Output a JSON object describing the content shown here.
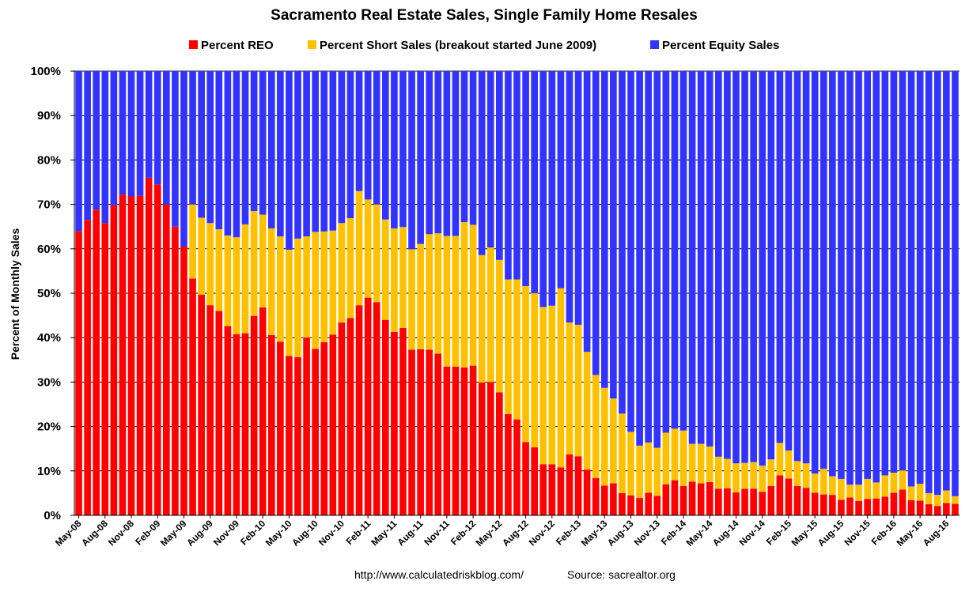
{
  "chart_data": {
    "type": "bar",
    "stacked": true,
    "title": "Sacramento Real Estate Sales, Single Family Home Resales",
    "ylabel": "Percent of Monthly Sales",
    "ylim": [
      0,
      100
    ],
    "y_ticks": [
      "0%",
      "10%",
      "20%",
      "30%",
      "40%",
      "50%",
      "60%",
      "70%",
      "80%",
      "90%",
      "100%"
    ],
    "x_tick_labels": [
      "May-08",
      "Aug-08",
      "Nov-08",
      "Feb-09",
      "May-09",
      "Aug-09",
      "Nov-09",
      "Feb-10",
      "May-10",
      "Aug-10",
      "Nov-10",
      "Feb-11",
      "May-11",
      "Aug-11",
      "Nov-11",
      "Feb-12",
      "May-12",
      "Aug-12",
      "Nov-12",
      "Feb-13",
      "May-13",
      "Aug-13",
      "Nov-13",
      "Feb-14",
      "May-14",
      "Aug-14",
      "Nov-14",
      "Feb-15",
      "May-15",
      "Aug-15",
      "Nov-15",
      "Feb-16",
      "May-16",
      "Aug-16"
    ],
    "legend_position": "top",
    "grid": true,
    "categories": [
      "May-08",
      "Jun-08",
      "Jul-08",
      "Aug-08",
      "Sep-08",
      "Oct-08",
      "Nov-08",
      "Dec-08",
      "Jan-09",
      "Feb-09",
      "Mar-09",
      "Apr-09",
      "May-09",
      "Jun-09",
      "Jul-09",
      "Aug-09",
      "Sep-09",
      "Oct-09",
      "Nov-09",
      "Dec-09",
      "Jan-10",
      "Feb-10",
      "Mar-10",
      "Apr-10",
      "May-10",
      "Jun-10",
      "Jul-10",
      "Aug-10",
      "Sep-10",
      "Oct-10",
      "Nov-10",
      "Dec-10",
      "Jan-11",
      "Feb-11",
      "Mar-11",
      "Apr-11",
      "May-11",
      "Jun-11",
      "Jul-11",
      "Aug-11",
      "Sep-11",
      "Oct-11",
      "Nov-11",
      "Dec-11",
      "Jan-12",
      "Feb-12",
      "Mar-12",
      "Apr-12",
      "May-12",
      "Jun-12",
      "Jul-12",
      "Aug-12",
      "Sep-12",
      "Oct-12",
      "Nov-12",
      "Dec-12",
      "Jan-13",
      "Feb-13",
      "Mar-13",
      "Apr-13",
      "May-13",
      "Jun-13",
      "Jul-13",
      "Aug-13",
      "Sep-13",
      "Oct-13",
      "Nov-13",
      "Dec-13",
      "Jan-14",
      "Feb-14",
      "Mar-14",
      "Apr-14",
      "May-14",
      "Jun-14",
      "Jul-14",
      "Aug-14",
      "Sep-14",
      "Oct-14",
      "Nov-14",
      "Dec-14",
      "Jan-15",
      "Feb-15",
      "Mar-15",
      "Apr-15",
      "May-15",
      "Jun-15",
      "Jul-15",
      "Aug-15",
      "Sep-15",
      "Oct-15",
      "Nov-15",
      "Dec-15",
      "Jan-16",
      "Feb-16",
      "Mar-16",
      "Apr-16",
      "May-16",
      "Jun-16",
      "Jul-16",
      "Aug-16",
      "Sep-16"
    ],
    "series": [
      {
        "name": "Percent REO",
        "color": "#ff0000",
        "values": [
          64,
          66.5,
          68.8,
          65.8,
          69.8,
          72.2,
          71.8,
          72,
          76,
          74.5,
          70,
          65,
          60.5,
          53.3,
          49.7,
          47.3,
          46,
          42.6,
          40.8,
          41,
          44.9,
          46.8,
          40.6,
          39.1,
          35.9,
          35.6,
          40,
          37.5,
          39,
          40.7,
          43.4,
          44.4,
          47.3,
          49,
          48,
          44,
          41.3,
          42.2,
          37.3,
          37.4,
          37.3,
          36.4,
          33.5,
          33.5,
          33.3,
          33.7,
          29.9,
          30,
          27.7,
          22.8,
          21.6,
          16.5,
          15.3,
          11.5,
          11.5,
          10.8,
          13.7,
          13.3,
          10.3,
          8.4,
          6.7,
          7.2,
          5,
          4.5,
          3.9,
          5.1,
          4.4,
          7,
          7.9,
          6.6,
          7.6,
          7.2,
          7.5,
          6,
          6.1,
          5.2,
          6,
          6,
          5.3,
          6.6,
          9,
          8.3,
          6.6,
          6.2,
          5.1,
          4.7,
          4.6,
          3.5,
          4,
          3.2,
          3.7,
          3.8,
          4.2,
          5.1,
          5.8,
          3.4,
          3.3,
          2.5,
          2.1,
          2.8,
          2.6
        ]
      },
      {
        "name": "Percent Short Sales (breakout started June 2009)",
        "color": "#ffc000",
        "values": [
          0,
          0,
          0,
          0,
          0,
          0,
          0,
          0,
          0,
          0,
          0,
          0,
          0,
          16.7,
          17.3,
          18.5,
          18.4,
          20.4,
          21.8,
          24.5,
          23.6,
          20.9,
          24,
          23.7,
          23.9,
          26.7,
          22.8,
          26.3,
          24.9,
          23.4,
          22.4,
          22.5,
          25.7,
          22.1,
          22,
          22.6,
          23.3,
          22.7,
          22.6,
          23.7,
          26,
          27.1,
          29.4,
          29.4,
          32.7,
          31.7,
          28.7,
          30.3,
          29.8,
          30.3,
          31.5,
          35.1,
          34.7,
          35.4,
          35.7,
          40.3,
          29.7,
          29.6,
          26.5,
          23.2,
          22,
          19.1,
          17.9,
          14.3,
          11.8,
          11.3,
          10.8,
          11.6,
          11.6,
          12.5,
          8.5,
          8.9,
          8,
          7.2,
          6.6,
          6.5,
          5.8,
          6,
          5.9,
          6,
          7.3,
          6.3,
          5.6,
          5.5,
          4.3,
          5.8,
          4.2,
          4.7,
          2.9,
          3.7,
          4.5,
          3.6,
          4.8,
          4.5,
          4.3,
          3.1,
          3.8,
          2.5,
          2.5,
          2.8,
          1.7
        ]
      },
      {
        "name": "Percent Equity Sales",
        "color": "#3333ff",
        "values": [
          36,
          33.5,
          31.2,
          34.2,
          30.2,
          27.8,
          28.2,
          28,
          24,
          25.5,
          30,
          35,
          39.5,
          30,
          33,
          34.2,
          35.6,
          37,
          37.4,
          34.5,
          31.5,
          32.3,
          35.4,
          37.2,
          40.2,
          37.7,
          37.2,
          36.2,
          36.1,
          35.9,
          34.2,
          33.1,
          27,
          28.9,
          30,
          33.4,
          35.4,
          35.1,
          40.1,
          38.9,
          36.7,
          36.5,
          37.1,
          37.1,
          34,
          34.6,
          41.4,
          39.7,
          42.5,
          46.9,
          46.9,
          48.4,
          50,
          53.1,
          52.8,
          48.9,
          56.6,
          57.1,
          63.2,
          68.4,
          71.3,
          73.7,
          77.1,
          81.2,
          84.3,
          83.6,
          84.8,
          81.4,
          80.5,
          80.9,
          83.9,
          83.9,
          84.5,
          86.8,
          87.3,
          88.3,
          88.2,
          88,
          88.8,
          87.4,
          83.7,
          85.4,
          87.8,
          88.3,
          90.6,
          89.5,
          91.2,
          91.8,
          93.1,
          93.1,
          91.8,
          92.6,
          91,
          90.4,
          89.9,
          93.5,
          92.9,
          95,
          95.4,
          94.4,
          95.7
        ]
      }
    ]
  },
  "footer": {
    "url": "http://www.calculatedriskblog.com/",
    "source": "Source: sacrealtor.org"
  }
}
